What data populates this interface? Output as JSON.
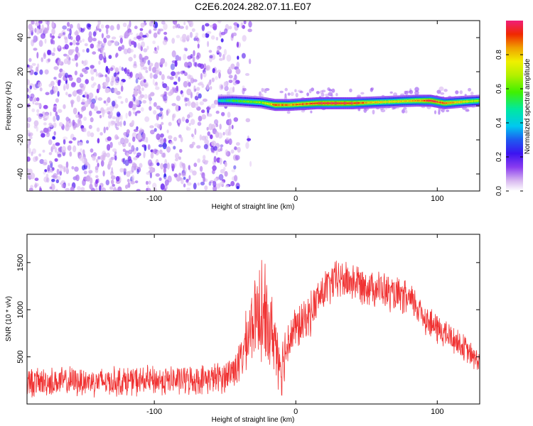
{
  "title": "C2E6.2024.282.07.11.E07",
  "colorbar": {
    "label": "Normalized spectral amplitude",
    "ticks": [
      0.0,
      0.2,
      0.4,
      0.6,
      0.8
    ],
    "tick_labels": [
      "0.0",
      "0.2",
      "0.4",
      "0.6",
      "0.8"
    ],
    "range": [
      0,
      1
    ]
  },
  "chart_data": [
    {
      "type": "heatmap",
      "xlabel": "Height of straight line (km)",
      "ylabel": "Frequency (Hz)",
      "xlim": [
        -190,
        130
      ],
      "ylim": [
        -50,
        50
      ],
      "x_ticks": [
        -100,
        0,
        100
      ],
      "x_tick_labels": [
        "-100",
        "0",
        "100"
      ],
      "y_ticks": [
        -40,
        -20,
        0,
        20,
        40
      ],
      "y_tick_labels": [
        "-40",
        "-20",
        "0",
        "20",
        "40"
      ],
      "noise_region_x": [
        -190,
        -30
      ],
      "band": [
        {
          "x": -55,
          "freq": 3,
          "amp": 0.45
        },
        {
          "x": -45,
          "freq": 3,
          "amp": 0.55
        },
        {
          "x": -35,
          "freq": 2.5,
          "amp": 0.6
        },
        {
          "x": -25,
          "freq": 2,
          "amp": 0.65
        },
        {
          "x": -15,
          "freq": 0.5,
          "amp": 0.9
        },
        {
          "x": -5,
          "freq": 0.5,
          "amp": 0.85
        },
        {
          "x": 5,
          "freq": 1,
          "amp": 0.9
        },
        {
          "x": 15,
          "freq": 1.5,
          "amp": 0.95
        },
        {
          "x": 25,
          "freq": 1.5,
          "amp": 1.0
        },
        {
          "x": 40,
          "freq": 1.5,
          "amp": 0.95
        },
        {
          "x": 55,
          "freq": 2,
          "amp": 0.8
        },
        {
          "x": 70,
          "freq": 2.5,
          "amp": 0.75
        },
        {
          "x": 85,
          "freq": 3,
          "amp": 0.85
        },
        {
          "x": 95,
          "freq": 3,
          "amp": 0.95
        },
        {
          "x": 105,
          "freq": 1.5,
          "amp": 0.9
        },
        {
          "x": 120,
          "freq": 2.5,
          "amp": 0.75
        },
        {
          "x": 130,
          "freq": 3,
          "amp": 0.7
        }
      ]
    },
    {
      "type": "line",
      "xlabel": "Height of straight line (km)",
      "ylabel": "SNR (10 * v/v)",
      "xlim": [
        -190,
        130
      ],
      "ylim": [
        0,
        1800
      ],
      "x_ticks": [
        -100,
        0,
        100
      ],
      "x_tick_labels": [
        "-100",
        "0",
        "100"
      ],
      "y_ticks": [
        500,
        1000,
        1500
      ],
      "y_tick_labels": [
        "500",
        "1000",
        "1500"
      ],
      "color": "#f03232",
      "series": [
        {
          "x": [
            -190,
            -170,
            -150,
            -130,
            -110,
            -90,
            -70,
            -60,
            -50,
            -40,
            -35,
            -30,
            -25,
            -20,
            -15,
            -10,
            -5,
            0,
            5,
            10,
            15,
            20,
            25,
            30,
            35,
            40,
            45,
            50,
            55,
            60,
            65,
            70,
            75,
            80,
            85,
            90,
            95,
            100,
            105,
            110,
            115,
            120,
            125,
            130
          ],
          "values": [
            230,
            235,
            240,
            240,
            245,
            250,
            255,
            270,
            290,
            420,
            650,
            900,
            900,
            850,
            700,
            400,
            700,
            800,
            850,
            950,
            1100,
            1200,
            1280,
            1320,
            1310,
            1300,
            1280,
            1260,
            1240,
            1220,
            1180,
            1150,
            1130,
            1100,
            1050,
            950,
            850,
            800,
            750,
            700,
            650,
            580,
            500,
            450
          ],
          "noise": [
            180,
            180,
            180,
            180,
            180,
            180,
            180,
            180,
            200,
            250,
            380,
            450,
            500,
            500,
            450,
            380,
            300,
            280,
            260,
            260,
            260,
            250,
            250,
            250,
            250,
            250,
            240,
            240,
            230,
            230,
            230,
            220,
            220,
            220,
            210,
            210,
            200,
            200,
            190,
            180,
            170,
            160,
            150,
            150
          ]
        }
      ]
    }
  ]
}
